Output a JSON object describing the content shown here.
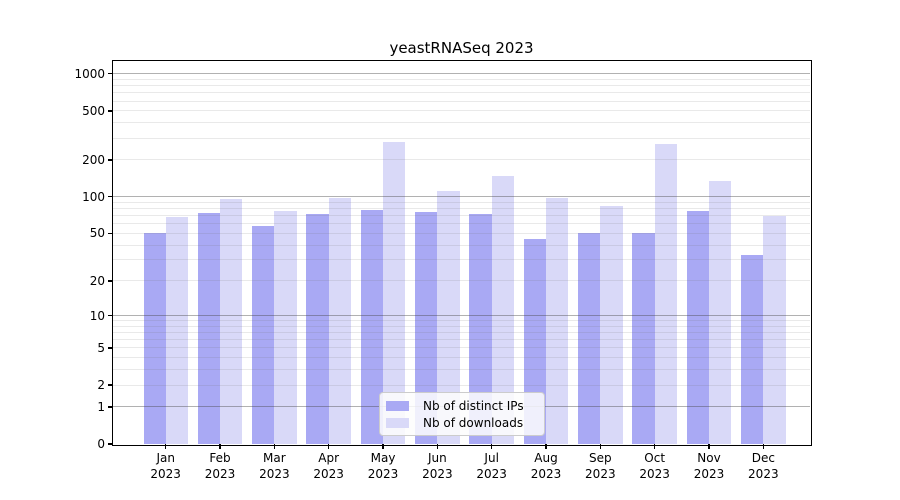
{
  "chart_data": {
    "type": "bar",
    "title": "yeastRNASeq 2023",
    "categories": [
      "Jan",
      "Feb",
      "Mar",
      "Apr",
      "May",
      "Jun",
      "Jul",
      "Aug",
      "Sep",
      "Oct",
      "Nov",
      "Dec"
    ],
    "x_tick_second_line": "2023",
    "series": [
      {
        "name": "Nb of distinct IPs",
        "color": "#a9a9f4",
        "values": [
          50,
          74,
          58,
          72,
          78,
          75,
          72,
          45,
          50,
          50,
          76,
          33
        ]
      },
      {
        "name": "Nb of downloads",
        "color": "#d9d9f8",
        "values": [
          68,
          96,
          77,
          97,
          277,
          111,
          148,
          98,
          84,
          270,
          135,
          70
        ]
      }
    ],
    "y_axis": {
      "scale": "log1p",
      "ylim": [
        0,
        1270
      ],
      "tick_values": [
        0,
        1,
        2,
        5,
        10,
        20,
        50,
        100,
        200,
        500,
        1000
      ],
      "tick_labels": [
        "0",
        "1",
        "2",
        "5",
        "10",
        "20",
        "50",
        "100",
        "200",
        "500",
        "1000"
      ],
      "major_grid_values": [
        1,
        10,
        100,
        1000
      ],
      "minor_grid_multiples": [
        2,
        3,
        4,
        5,
        6,
        7,
        8,
        9
      ],
      "minor_grid_bases": [
        1,
        10,
        100
      ]
    },
    "xlabel": "",
    "ylabel": "",
    "grid": true,
    "legend": {
      "position": "lower-center"
    },
    "colors": {
      "background": "#ffffff",
      "spine": "#000000",
      "major_grid": "#9d9d9d",
      "minor_grid": "#e4e4e4",
      "text": "#000000"
    }
  }
}
